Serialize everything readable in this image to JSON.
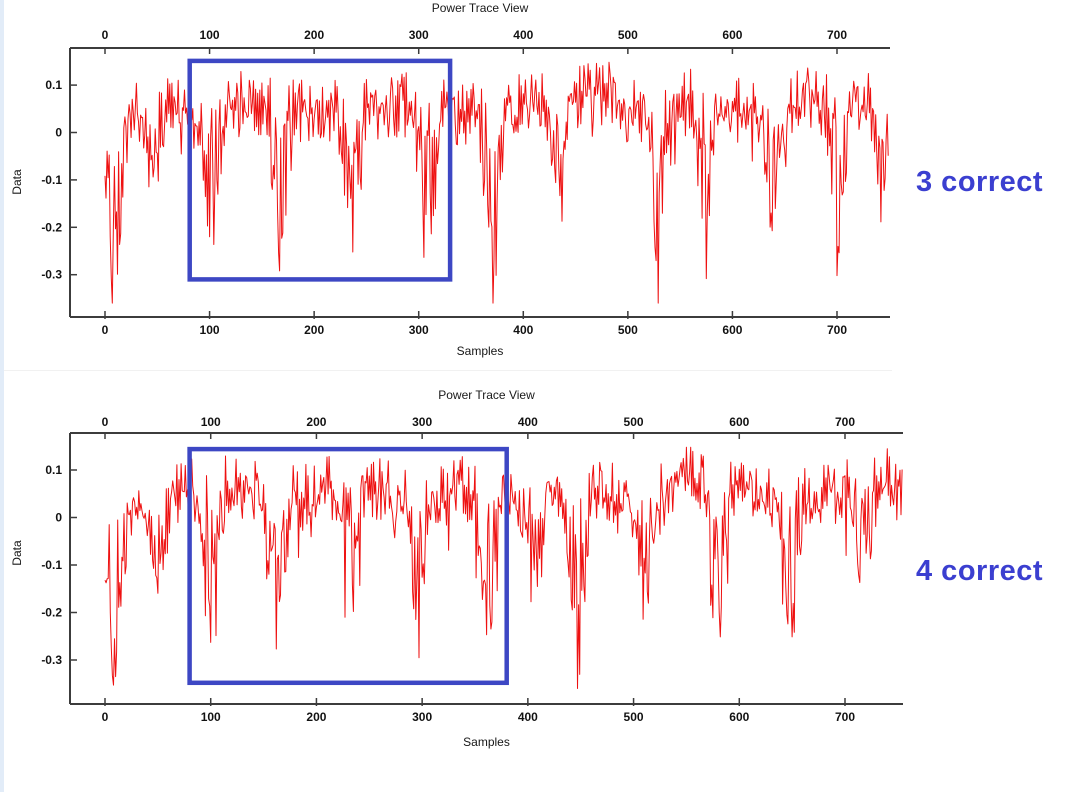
{
  "page": {
    "background": "#ffffff",
    "left_edge_stripe_color": "#e2ecf8",
    "panel_divider_color": "#f1f1f1"
  },
  "annotations": [
    {
      "text": "3 correct",
      "color": "#3b3fd0"
    },
    {
      "text": "4 correct",
      "color": "#3b3fd0"
    }
  ],
  "chart_data": [
    {
      "type": "line",
      "title": "Power Trace View",
      "xlabel": "Samples",
      "ylabel": "Data",
      "x_ticks": [
        0,
        100,
        200,
        300,
        400,
        500,
        600,
        700
      ],
      "y_ticks": [
        0.1,
        0,
        -0.1,
        -0.2,
        -0.3
      ],
      "xlim": [
        -33,
        752
      ],
      "ylim": [
        -0.39,
        0.18
      ],
      "grid": false,
      "legend": "none",
      "axes_shown": [
        "top",
        "left",
        "bottom"
      ],
      "trace_color": "#ee1111",
      "axis_color": "#3c3c3c",
      "n_samples": 750,
      "seed": 42,
      "synthesis": {
        "base_mean": 0.05,
        "noise_amp": 0.055,
        "wobble": [
          0.012,
          137,
          0.8
        ],
        "warmup": 55,
        "warmup_drop": 0.06,
        "valley_width": 14,
        "valleys": [
          [
            10,
            0.26
          ],
          [
            48,
            0.12
          ],
          [
            103,
            0.22
          ],
          [
            168,
            0.22
          ],
          [
            235,
            0.24
          ],
          [
            308,
            0.22
          ],
          [
            371,
            0.26
          ],
          [
            433,
            0.16
          ],
          [
            530,
            0.22
          ],
          [
            574,
            0.2
          ],
          [
            640,
            0.2
          ],
          [
            700,
            0.2
          ],
          [
            745,
            0.12
          ]
        ],
        "humps": [
          [
            445,
            500,
            0.055
          ],
          [
            640,
            700,
            0.02
          ]
        ],
        "clip": [
          -0.36,
          0.148
        ]
      },
      "highlight_box": {
        "x0": 81,
        "x1": 330,
        "y0": -0.31,
        "y1": 0.151,
        "color": "#3d47c4"
      }
    },
    {
      "type": "line",
      "title": "Power Trace View",
      "xlabel": "Samples",
      "ylabel": "Data",
      "x_ticks": [
        0,
        100,
        200,
        300,
        400,
        500,
        600,
        700
      ],
      "y_ticks": [
        0.1,
        0,
        -0.1,
        -0.2,
        -0.3
      ],
      "xlim": [
        -33,
        755
      ],
      "ylim": [
        -0.39,
        0.18
      ],
      "grid": false,
      "legend": "none",
      "axes_shown": [
        "top",
        "left",
        "bottom"
      ],
      "trace_color": "#ee1111",
      "axis_color": "#3c3c3c",
      "n_samples": 755,
      "seed": 1337,
      "synthesis": {
        "base_mean": 0.05,
        "noise_amp": 0.055,
        "wobble": [
          0.012,
          120,
          2.1
        ],
        "warmup": 55,
        "warmup_drop": 0.06,
        "valley_width": 14,
        "valleys": [
          [
            10,
            0.26
          ],
          [
            50,
            0.12
          ],
          [
            100,
            0.21
          ],
          [
            163,
            0.22
          ],
          [
            230,
            0.23
          ],
          [
            297,
            0.22
          ],
          [
            362,
            0.24
          ],
          [
            405,
            0.18
          ],
          [
            447,
            0.26
          ],
          [
            510,
            0.16
          ],
          [
            580,
            0.22
          ],
          [
            648,
            0.22
          ],
          [
            718,
            0.18
          ]
        ],
        "humps": [
          [
            525,
            572,
            0.06
          ],
          [
            700,
            752,
            0.035
          ]
        ],
        "clip": [
          -0.36,
          0.148
        ]
      },
      "highlight_box": {
        "x0": 80,
        "x1": 380,
        "y0": -0.348,
        "y1": 0.144,
        "color": "#3d47c4"
      }
    }
  ]
}
